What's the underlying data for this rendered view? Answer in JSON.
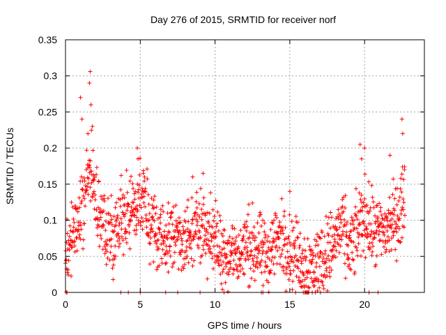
{
  "chart_data": {
    "type": "scatter",
    "title": "Day 276 of 2015, SRMTID for receiver norf",
    "xlabel": "GPS time / hours",
    "ylabel": "SRMTID / TECUs",
    "xlim": [
      0,
      24
    ],
    "ylim": [
      0,
      0.35
    ],
    "grid": true,
    "marker": "+",
    "x_ticks": [
      0,
      5,
      10,
      15,
      20
    ],
    "x_tick_labels": [
      "0",
      "5",
      "10",
      "15",
      "20"
    ],
    "y_ticks": [
      0,
      0.05,
      0.1,
      0.15,
      0.2,
      0.25,
      0.3,
      0.35
    ],
    "y_tick_labels": [
      "0",
      "0.05",
      "0.1",
      "0.15",
      "0.2",
      "0.25",
      "0.3",
      "0.35"
    ],
    "series": [
      {
        "name": "SRMTID",
        "color": "#ff0000",
        "profile_x": [
          0,
          0.3,
          0.6,
          0.9,
          1.2,
          1.5,
          1.7,
          2.0,
          2.4,
          2.8,
          3.2,
          3.6,
          4.0,
          4.5,
          4.8,
          5.2,
          5.6,
          6.0,
          6.5,
          7.0,
          7.5,
          8.0,
          8.5,
          9.0,
          9.5,
          10.0,
          10.5,
          11.0,
          11.5,
          12.0,
          12.5,
          13.0,
          13.5,
          14.0,
          14.5,
          15.0,
          15.5,
          16.0,
          16.5,
          17.0,
          17.5,
          18.0,
          18.3,
          18.7,
          19.0,
          19.3,
          19.6,
          20.0,
          20.5,
          21.0,
          21.5,
          22.0,
          22.4,
          22.7
        ],
        "profile_y": [
          0.065,
          0.075,
          0.085,
          0.1,
          0.12,
          0.15,
          0.17,
          0.12,
          0.1,
          0.08,
          0.075,
          0.1,
          0.115,
          0.11,
          0.13,
          0.125,
          0.1,
          0.085,
          0.075,
          0.075,
          0.085,
          0.07,
          0.08,
          0.1,
          0.085,
          0.07,
          0.06,
          0.055,
          0.05,
          0.06,
          0.065,
          0.055,
          0.05,
          0.07,
          0.075,
          0.06,
          0.05,
          0.04,
          0.035,
          0.045,
          0.055,
          0.07,
          0.09,
          0.075,
          0.06,
          0.07,
          0.09,
          0.11,
          0.085,
          0.08,
          0.09,
          0.1,
          0.11,
          0.14
        ],
        "spread": 0.025,
        "peaks": [
          {
            "x": 1.0,
            "y": 0.27
          },
          {
            "x": 1.1,
            "y": 0.24
          },
          {
            "x": 1.6,
            "y": 0.29
          },
          {
            "x": 1.65,
            "y": 0.306
          },
          {
            "x": 1.7,
            "y": 0.26
          },
          {
            "x": 1.8,
            "y": 0.23
          },
          {
            "x": 1.5,
            "y": 0.22
          },
          {
            "x": 4.8,
            "y": 0.2
          },
          {
            "x": 4.85,
            "y": 0.185
          },
          {
            "x": 5.2,
            "y": 0.165
          },
          {
            "x": 8.5,
            "y": 0.16
          },
          {
            "x": 9.2,
            "y": 0.165
          },
          {
            "x": 15.0,
            "y": 0.14
          },
          {
            "x": 19.7,
            "y": 0.205
          },
          {
            "x": 19.8,
            "y": 0.185
          },
          {
            "x": 20.0,
            "y": 0.2
          },
          {
            "x": 21.7,
            "y": 0.19
          },
          {
            "x": 22.5,
            "y": 0.24
          },
          {
            "x": 22.55,
            "y": 0.22
          }
        ],
        "zero_x": [
          0.05,
          0.1,
          3.7,
          4.2,
          5.0,
          6.7,
          7.5,
          9.0,
          10.6,
          13.1,
          13.2,
          15.9,
          16.0,
          16.1,
          16.2,
          16.5,
          16.7,
          20.3,
          20.9
        ]
      }
    ]
  }
}
